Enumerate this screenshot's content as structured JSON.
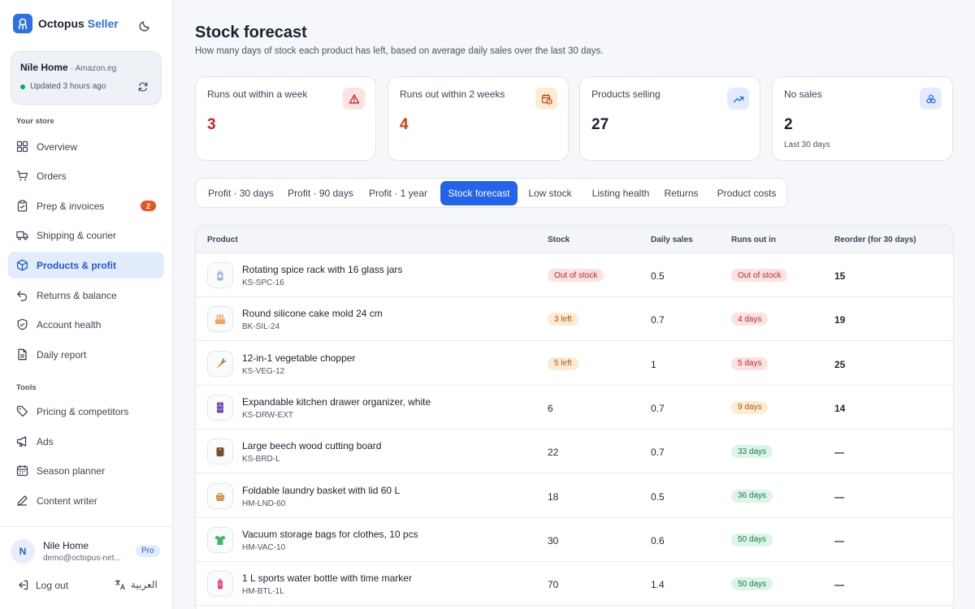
{
  "app": {
    "brand_first": "Octopus",
    "brand_second": "Seller"
  },
  "store": {
    "name": "Nile Home",
    "marketplace": "· Amazon.eg",
    "updated": "Updated 3 hours ago"
  },
  "nav": {
    "section_store": "Your store",
    "items": [
      {
        "label": "Overview",
        "icon": "grid-icon"
      },
      {
        "label": "Orders",
        "icon": "cart-icon"
      },
      {
        "label": "Prep & invoices",
        "icon": "clipboard-icon",
        "badge": "2"
      },
      {
        "label": "Shipping & courier",
        "icon": "truck-icon"
      },
      {
        "label": "Products & profit",
        "icon": "box-icon",
        "active": true
      },
      {
        "label": "Returns & balance",
        "icon": "undo-icon"
      },
      {
        "label": "Account health",
        "icon": "shield-icon"
      },
      {
        "label": "Daily report",
        "icon": "document-icon"
      }
    ],
    "section_tools": "Tools",
    "tools": [
      {
        "label": "Pricing & competitors",
        "icon": "tag-icon"
      },
      {
        "label": "Ads",
        "icon": "megaphone-icon"
      },
      {
        "label": "Season planner",
        "icon": "calendar-icon"
      },
      {
        "label": "Content writer",
        "icon": "pen-icon"
      }
    ]
  },
  "user": {
    "initial": "N",
    "name": "Nile Home",
    "email": "demo@octopus-net...",
    "plan": "Pro",
    "logout": "Log out",
    "language": "العربية"
  },
  "page": {
    "title": "Stock forecast",
    "subtitle": "How many days of stock each product has left, based on average daily sales over the last 30 days."
  },
  "stats": [
    {
      "label": "Runs out within a week",
      "value": "3",
      "value_color": "#c0262d",
      "icon": "alert-triangle-icon",
      "icon_bg": "#fde2e2",
      "icon_color": "#c0262d",
      "note": ""
    },
    {
      "label": "Runs out within 2 weeks",
      "value": "4",
      "value_color": "#c2410c",
      "icon": "clock-calendar-icon",
      "icon_bg": "#fdebd3",
      "icon_color": "#c2410c",
      "note": ""
    },
    {
      "label": "Products selling",
      "value": "27",
      "value_color": "#1a2230",
      "icon": "trending-up-icon",
      "icon_bg": "#e2ecfd",
      "icon_color": "#2563eb",
      "note": ""
    },
    {
      "label": "No sales",
      "value": "2",
      "value_color": "#1a2230",
      "icon": "cluster-icon",
      "icon_bg": "#e2ecfd",
      "icon_color": "#2563eb",
      "note": "Last 30 days"
    }
  ],
  "tabs": [
    {
      "label": "Profit · 30 days"
    },
    {
      "label": "Profit · 90 days"
    },
    {
      "label": "Profit · 1 year"
    },
    {
      "label": "Stock forecast",
      "active": true
    },
    {
      "label": "Low stock"
    },
    {
      "label": "Listing health"
    },
    {
      "label": "Returns"
    },
    {
      "label": "Product costs"
    }
  ],
  "table": {
    "headers": {
      "product": "Product",
      "stock": "Stock",
      "daily": "Daily sales",
      "runs_out": "Runs out in",
      "reorder": "Reorder (for 30 days)"
    },
    "rows": [
      {
        "name": "Rotating spice rack with 16 glass jars",
        "sku": "KS-SPC-16",
        "stock": "Out of stock",
        "stock_tone": "red",
        "daily": "0.5",
        "runs_out": "Out of stock",
        "runs_tone": "red",
        "reorder": "15",
        "thumb": "spice-jar-icon",
        "thumb_color": "#9ab7d3"
      },
      {
        "name": "Round silicone cake mold 24 cm",
        "sku": "BK-SIL-24",
        "stock": "3 left",
        "stock_tone": "amber",
        "daily": "0.7",
        "runs_out": "4 days",
        "runs_tone": "red",
        "reorder": "19",
        "thumb": "cake-icon",
        "thumb_color": "#f0a45a"
      },
      {
        "name": "12-in-1 vegetable chopper",
        "sku": "KS-VEG-12",
        "stock": "5 left",
        "stock_tone": "amber",
        "daily": "1",
        "runs_out": "5 days",
        "runs_tone": "red",
        "reorder": "25",
        "thumb": "carrot-icon",
        "thumb_color": "#f07a2e"
      },
      {
        "name": "Expandable kitchen drawer organizer, white",
        "sku": "KS-DRW-EXT",
        "stock": "6",
        "stock_tone": "",
        "daily": "0.7",
        "runs_out": "9 days",
        "runs_tone": "amber",
        "reorder": "14",
        "thumb": "drawer-icon",
        "thumb_color": "#6a4fb0"
      },
      {
        "name": "Large beech wood cutting board",
        "sku": "KS-BRD-L",
        "stock": "22",
        "stock_tone": "",
        "daily": "0.7",
        "runs_out": "33 days",
        "runs_tone": "green",
        "reorder": "—",
        "thumb": "board-icon",
        "thumb_color": "#7a4a2a"
      },
      {
        "name": "Foldable laundry basket with lid 60 L",
        "sku": "HM-LND-60",
        "stock": "18",
        "stock_tone": "",
        "daily": "0.5",
        "runs_out": "36 days",
        "runs_tone": "green",
        "reorder": "—",
        "thumb": "basket-icon",
        "thumb_color": "#c98a3c"
      },
      {
        "name": "Vacuum storage bags for clothes, 10 pcs",
        "sku": "HM-VAC-10",
        "stock": "30",
        "stock_tone": "",
        "daily": "0.6",
        "runs_out": "50 days",
        "runs_tone": "green",
        "reorder": "—",
        "thumb": "shirt-icon",
        "thumb_color": "#3cb86a"
      },
      {
        "name": "1 L sports water bottle with time marker",
        "sku": "HM-BTL-1L",
        "stock": "70",
        "stock_tone": "",
        "daily": "1.4",
        "runs_out": "50 days",
        "runs_tone": "green",
        "reorder": "—",
        "thumb": "bottle-icon",
        "thumb_color": "#e8457a"
      }
    ]
  }
}
